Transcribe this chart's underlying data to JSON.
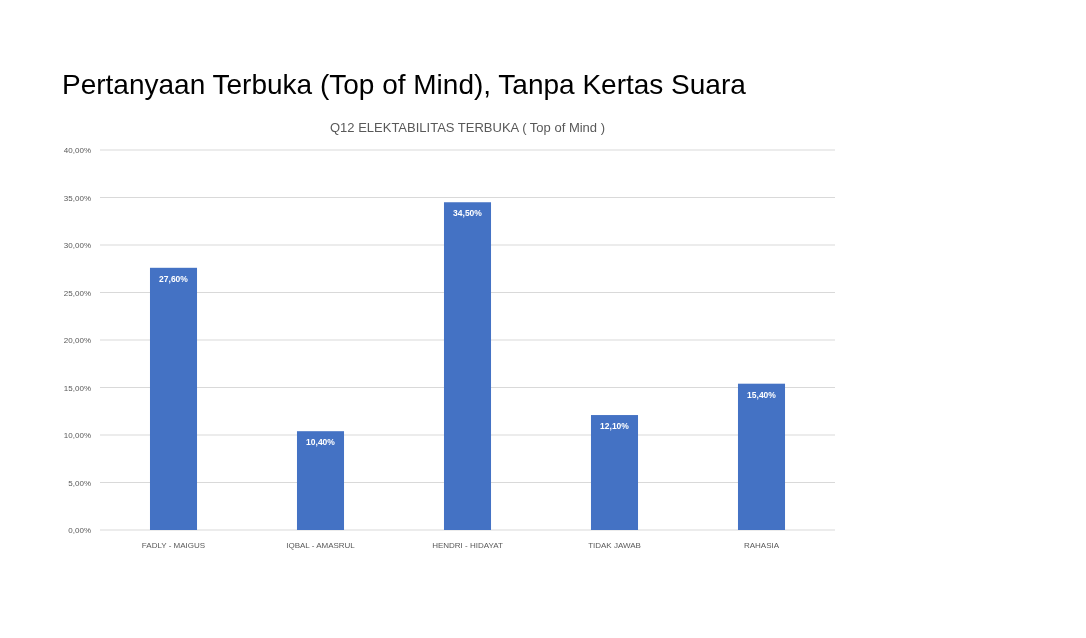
{
  "chart_data": {
    "type": "bar",
    "title": "Pertanyaan Terbuka (Top of Mind), Tanpa Kertas Suara",
    "subtitle": "Q12 ELEKTABILITAS TERBUKA ( Top of Mind )",
    "categories": [
      "FADLY - MAIGUS",
      "IQBAL - AMASRUL",
      "HENDRI - HIDAYAT",
      "TIDAK JAWAB",
      "RAHASIA"
    ],
    "values": [
      27.6,
      10.4,
      34.5,
      12.1,
      15.4
    ],
    "value_labels": [
      "27,60%",
      "10,40%",
      "34,50%",
      "12,10%",
      "15,40%"
    ],
    "color": "#4472c4",
    "ylim": [
      0,
      40
    ],
    "yticks": [
      {
        "value": 0,
        "label": "0,00%"
      },
      {
        "value": 5,
        "label": "5,00%"
      },
      {
        "value": 10,
        "label": "10,00%"
      },
      {
        "value": 15,
        "label": "15,00%"
      },
      {
        "value": 20,
        "label": "20,00%"
      },
      {
        "value": 25,
        "label": "25,00%"
      },
      {
        "value": 30,
        "label": "30,00%"
      },
      {
        "value": 35,
        "label": "35,00%"
      },
      {
        "value": 40,
        "label": "40,00%"
      }
    ],
    "grid": "y"
  }
}
